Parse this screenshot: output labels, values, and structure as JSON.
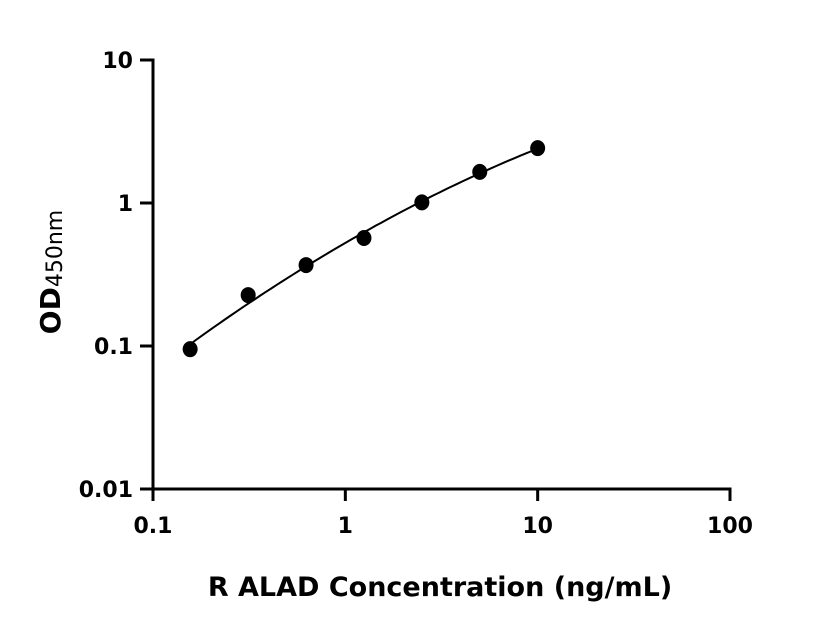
{
  "chart_data": {
    "type": "scatter",
    "title": "",
    "xlabel": "R ALAD Concentration (ng/mL)",
    "ylabel": "OD",
    "ylabel_subscript": "450nm",
    "xscale": "log",
    "yscale": "log",
    "xlim": [
      0.1,
      100
    ],
    "ylim": [
      0.01,
      10
    ],
    "xticks": [
      "0.1",
      "1",
      "10",
      "100"
    ],
    "yticks": [
      "0.01",
      "0.1",
      "1",
      "10"
    ],
    "grid": false,
    "legend": "none",
    "fit_curve": true,
    "color": "#000000",
    "x": [
      0.156,
      0.3125,
      0.625,
      1.25,
      2.5,
      5,
      10
    ],
    "y": [
      0.095,
      0.227,
      0.368,
      0.569,
      1.01,
      1.65,
      2.42
    ]
  }
}
